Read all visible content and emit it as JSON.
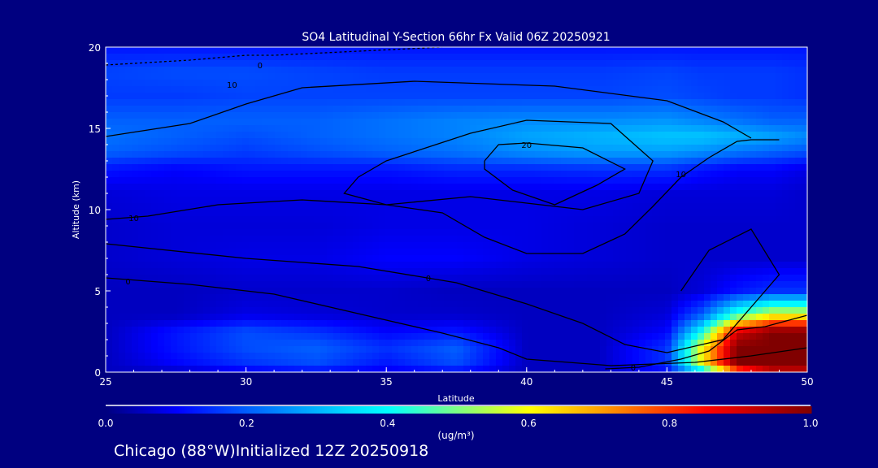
{
  "chart_data": {
    "type": "heatmap",
    "title": "SO4 Latitudinal Y-Section 66hr  Fx Valid 06Z 20250921",
    "xlabel": "Latitude",
    "ylabel": "Altitude (km)",
    "xlim": [
      25,
      50
    ],
    "ylim": [
      0,
      20
    ],
    "xticks": [
      "25",
      "30",
      "35",
      "40",
      "45",
      "50"
    ],
    "yticks": [
      "0",
      "5",
      "10",
      "15",
      "20"
    ],
    "colorbar": {
      "label": "(ug/m³)",
      "range": [
        0.0,
        1.0
      ],
      "ticks": [
        "0.0",
        "0.2",
        "0.4",
        "0.6",
        "0.8",
        "1.0"
      ],
      "stops": [
        [
          0.0,
          "#000080"
        ],
        [
          0.1,
          "#0000ff"
        ],
        [
          0.2,
          "#0060ff"
        ],
        [
          0.35,
          "#00e0ff"
        ],
        [
          0.4,
          "#00ffff"
        ],
        [
          0.5,
          "#80ff80"
        ],
        [
          0.6,
          "#ffff00"
        ],
        [
          0.7,
          "#ffa000"
        ],
        [
          0.85,
          "#ff0000"
        ],
        [
          1.0,
          "#800000"
        ]
      ]
    },
    "lat": [
      25,
      27.5,
      30,
      32.5,
      35,
      37.5,
      40,
      42.5,
      45,
      46.25,
      47.5,
      48.75,
      50
    ],
    "alt": [
      0,
      0.5,
      1.5,
      2.5,
      3.5,
      5,
      7,
      9,
      11,
      12.5,
      13.5,
      14.5,
      15.5,
      17,
      18.5,
      20
    ],
    "values": [
      [
        0.05,
        0.05,
        0.08,
        0.1,
        0.08,
        0.1,
        0.05,
        0.05,
        0.1,
        0.3,
        0.7,
        0.9,
        0.9
      ],
      [
        0.05,
        0.1,
        0.15,
        0.18,
        0.12,
        0.18,
        0.05,
        0.05,
        0.15,
        0.6,
        1.0,
        1.0,
        1.0
      ],
      [
        0.05,
        0.12,
        0.18,
        0.2,
        0.15,
        0.2,
        0.05,
        0.05,
        0.15,
        0.6,
        1.0,
        1.0,
        1.0
      ],
      [
        0.05,
        0.12,
        0.18,
        0.15,
        0.1,
        0.12,
        0.05,
        0.05,
        0.1,
        0.4,
        0.9,
        1.0,
        1.0
      ],
      [
        0.05,
        0.05,
        0.08,
        0.07,
        0.06,
        0.06,
        0.05,
        0.05,
        0.07,
        0.2,
        0.45,
        0.6,
        0.6
      ],
      [
        0.05,
        0.05,
        0.06,
        0.06,
        0.06,
        0.05,
        0.05,
        0.05,
        0.05,
        0.07,
        0.12,
        0.15,
        0.15
      ],
      [
        0.06,
        0.07,
        0.08,
        0.08,
        0.1,
        0.1,
        0.08,
        0.07,
        0.06,
        0.06,
        0.06,
        0.06,
        0.06
      ],
      [
        0.06,
        0.07,
        0.07,
        0.07,
        0.08,
        0.08,
        0.08,
        0.07,
        0.06,
        0.06,
        0.06,
        0.06,
        0.06
      ],
      [
        0.07,
        0.08,
        0.08,
        0.08,
        0.08,
        0.08,
        0.08,
        0.08,
        0.07,
        0.07,
        0.07,
        0.07,
        0.06
      ],
      [
        0.12,
        0.1,
        0.12,
        0.12,
        0.12,
        0.14,
        0.14,
        0.15,
        0.15,
        0.12,
        0.1,
        0.1,
        0.08
      ],
      [
        0.2,
        0.18,
        0.16,
        0.18,
        0.2,
        0.22,
        0.25,
        0.27,
        0.27,
        0.25,
        0.22,
        0.2,
        0.18
      ],
      [
        0.22,
        0.2,
        0.18,
        0.2,
        0.22,
        0.24,
        0.28,
        0.3,
        0.32,
        0.32,
        0.3,
        0.28,
        0.25
      ],
      [
        0.2,
        0.2,
        0.2,
        0.2,
        0.22,
        0.24,
        0.25,
        0.25,
        0.26,
        0.24,
        0.22,
        0.2,
        0.2
      ],
      [
        0.16,
        0.16,
        0.17,
        0.17,
        0.17,
        0.17,
        0.17,
        0.17,
        0.18,
        0.17,
        0.16,
        0.16,
        0.15
      ],
      [
        0.17,
        0.18,
        0.18,
        0.17,
        0.16,
        0.16,
        0.16,
        0.16,
        0.17,
        0.16,
        0.16,
        0.16,
        0.15
      ],
      [
        0.12,
        0.12,
        0.12,
        0.12,
        0.12,
        0.12,
        0.12,
        0.12,
        0.12,
        0.12,
        0.12,
        0.12,
        0.12
      ]
    ],
    "contours": [
      {
        "level": "20",
        "label_at": [
          40,
          14.0
        ],
        "points": [
          [
            38.5,
            13
          ],
          [
            39,
            14
          ],
          [
            40,
            14.1
          ],
          [
            42,
            13.8
          ],
          [
            43.5,
            12.5
          ],
          [
            42.5,
            11.5
          ],
          [
            41,
            10.3
          ],
          [
            39.5,
            11.2
          ],
          [
            38.5,
            12.5
          ],
          [
            38.5,
            13
          ]
        ]
      },
      {
        "level": "10",
        "label_at": [
          26,
          9.5
        ],
        "points": [
          [
            25,
            9.4
          ],
          [
            26.5,
            9.6
          ],
          [
            29,
            10.3
          ],
          [
            32,
            10.6
          ],
          [
            35,
            10.3
          ],
          [
            37,
            9.8
          ],
          [
            38.5,
            8.3
          ],
          [
            40,
            7.3
          ],
          [
            42,
            7.3
          ],
          [
            43.5,
            8.5
          ],
          [
            44.5,
            10.2
          ],
          [
            45.5,
            12
          ],
          [
            46.5,
            13.2
          ],
          [
            47.5,
            14.2
          ],
          [
            48,
            14.3
          ],
          [
            49,
            14.3
          ]
        ]
      },
      {
        "level": "10",
        "label_at": [
          45.5,
          12.2
        ],
        "points": [
          [
            48,
            14.4
          ],
          [
            47,
            15.4
          ],
          [
            45,
            16.7
          ],
          [
            41,
            17.6
          ],
          [
            36,
            17.9
          ],
          [
            32,
            17.5
          ],
          [
            30,
            16.5
          ],
          [
            28,
            15.3
          ],
          [
            25,
            14.5
          ]
        ]
      },
      {
        "level": "10",
        "label_at": [
          29.5,
          17.7
        ],
        "points": [
          [
            34,
            12
          ],
          [
            35,
            13
          ],
          [
            38,
            14.7
          ],
          [
            40,
            15.5
          ],
          [
            43,
            15.3
          ],
          [
            44.5,
            13
          ],
          [
            44,
            11
          ],
          [
            42,
            10
          ],
          [
            38,
            10.8
          ],
          [
            35,
            10.3
          ],
          [
            33.5,
            11
          ],
          [
            34,
            12
          ]
        ]
      },
      {
        "level": "0",
        "label_at": [
          25.8,
          5.6
        ],
        "points": [
          [
            25,
            5.8
          ],
          [
            28,
            5.4
          ],
          [
            31,
            4.8
          ],
          [
            34,
            3.6
          ],
          [
            37,
            2.4
          ],
          [
            39,
            1.5
          ],
          [
            40,
            0.8
          ],
          [
            43,
            0.4
          ],
          [
            46,
            0.6
          ],
          [
            48,
            1
          ],
          [
            50,
            1.5
          ]
        ]
      },
      {
        "level": "0",
        "label_at": [
          36.5,
          5.8
        ],
        "points": [
          [
            25,
            7.9
          ],
          [
            30,
            7
          ],
          [
            34,
            6.5
          ],
          [
            37.5,
            5.5
          ],
          [
            40,
            4.2
          ],
          [
            42,
            3
          ],
          [
            43.5,
            1.7
          ],
          [
            45,
            1.2
          ],
          [
            47,
            2
          ],
          [
            48,
            4
          ],
          [
            49,
            6
          ],
          [
            48,
            8.8
          ],
          [
            46.5,
            7.5
          ],
          [
            45.5,
            5
          ]
        ]
      },
      {
        "level": "0",
        "label_at": [
          43.8,
          0.3
        ],
        "points": [
          [
            42.8,
            0.2
          ],
          [
            44,
            0.3
          ],
          [
            45.5,
            0.8
          ],
          [
            46.5,
            1.3
          ],
          [
            47.5,
            2.6
          ],
          [
            48.5,
            2.8
          ],
          [
            50,
            3.5
          ]
        ]
      },
      {
        "level": "0",
        "label_at": [
          30.5,
          18.9
        ],
        "points": [
          [
            25,
            18.9
          ],
          [
            28,
            19.2
          ],
          [
            30,
            19.5
          ],
          [
            31,
            19.5
          ],
          [
            37,
            20
          ]
        ]
      }
    ]
  },
  "footer": {
    "location": "Chicago (88°W)Initialized 12Z 20250918"
  }
}
